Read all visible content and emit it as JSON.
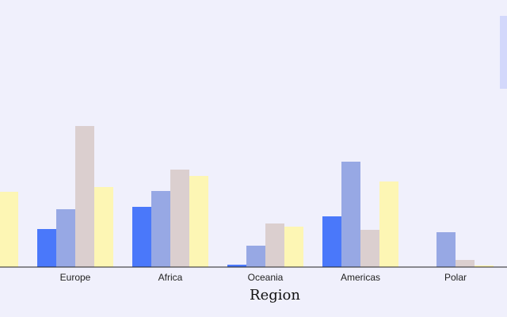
{
  "chart_data": {
    "type": "bar",
    "x_label": "Region",
    "categories": [
      null,
      "Europe",
      "Africa",
      "Oceania",
      "Americas",
      "Polar"
    ],
    "series": [
      {
        "color": "#4a78fa",
        "values": [
          null,
          48,
          76,
          3,
          64,
          0
        ]
      },
      {
        "color": "#97a8e4",
        "values": [
          null,
          73,
          96,
          27,
          133,
          44
        ]
      },
      {
        "color": "#dbcfcf",
        "values": [
          null,
          178,
          123,
          55,
          47,
          9
        ]
      },
      {
        "color": "#fdf6b4",
        "values": [
          95,
          101,
          115,
          51,
          108,
          2
        ]
      }
    ],
    "ylim": [
      0,
      240
    ]
  }
}
